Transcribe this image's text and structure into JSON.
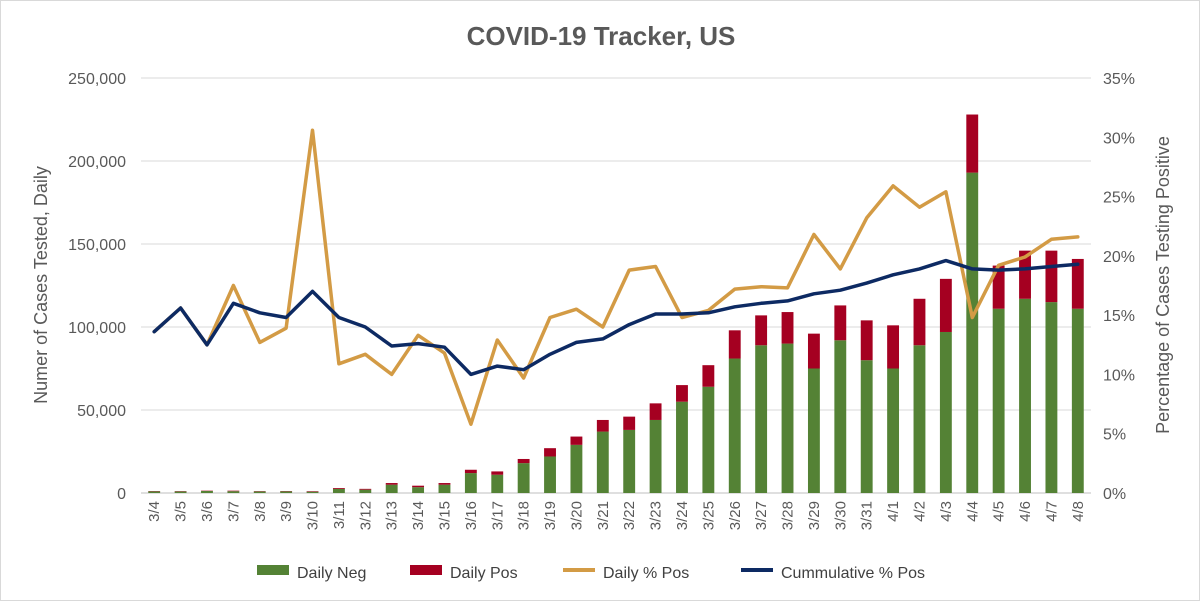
{
  "chart_data": {
    "type": "bar",
    "title": "COVID-19 Tracker, US",
    "ylabel": "Numer of Cases Tested, Daily",
    "y2label": "Percentage of Cases Testing Positive",
    "xlabel": "",
    "ylim": [
      0,
      250000
    ],
    "y2lim": [
      0,
      35
    ],
    "yticks": [
      "0",
      "50,000",
      "100,000",
      "150,000",
      "200,000",
      "250,000"
    ],
    "y2ticks": [
      "0%",
      "5%",
      "10%",
      "15%",
      "20%",
      "25%",
      "30%",
      "35%"
    ],
    "categories": [
      "3/4",
      "3/5",
      "3/6",
      "3/7",
      "3/8",
      "3/9",
      "3/10",
      "3/11",
      "3/12",
      "3/13",
      "3/14",
      "3/15",
      "3/16",
      "3/17",
      "3/18",
      "3/19",
      "3/20",
      "3/21",
      "3/22",
      "3/23",
      "3/24",
      "3/25",
      "3/26",
      "3/27",
      "3/28",
      "3/29",
      "3/30",
      "3/31",
      "4/1",
      "4/2",
      "4/3",
      "4/4",
      "4/5",
      "4/6",
      "4/7",
      "4/8"
    ],
    "series": [
      {
        "name": "Daily Neg",
        "kind": "bar",
        "axis": "left",
        "color": "#548235",
        "values": [
          1000,
          900,
          1200,
          1100,
          900,
          1000,
          800,
          2500,
          2000,
          5000,
          3500,
          5000,
          12000,
          11000,
          18000,
          22000,
          29000,
          37000,
          38000,
          44000,
          55000,
          64000,
          81000,
          89000,
          90000,
          75000,
          92000,
          80000,
          75000,
          89000,
          97000,
          193000,
          111000,
          117000,
          115000,
          111000
        ]
      },
      {
        "name": "Daily Pos",
        "kind": "bar",
        "axis": "left",
        "color": "#a50021",
        "values": [
          200,
          200,
          200,
          300,
          200,
          200,
          300,
          500,
          500,
          1000,
          900,
          1000,
          2000,
          2000,
          2500,
          5000,
          5000,
          7000,
          8000,
          10000,
          10000,
          13000,
          17000,
          18000,
          19000,
          21000,
          21000,
          24000,
          26000,
          28000,
          32000,
          35000,
          26000,
          29000,
          31000,
          30000
        ]
      },
      {
        "name": "Daily % Pos",
        "kind": "line",
        "axis": "right",
        "color": "#d39b45",
        "values": [
          13.6,
          15.6,
          12.5,
          17.5,
          12.7,
          13.9,
          30.6,
          10.9,
          11.7,
          10.0,
          13.3,
          11.8,
          5.8,
          12.9,
          9.7,
          14.8,
          15.5,
          14.0,
          18.8,
          19.1,
          14.8,
          15.4,
          17.2,
          17.4,
          17.3,
          21.8,
          18.9,
          23.2,
          25.9,
          24.1,
          25.4,
          14.8,
          19.2,
          19.9,
          21.4,
          21.6
        ]
      },
      {
        "name": "Cummulative % Pos",
        "kind": "line",
        "axis": "right",
        "color": "#0d2a63",
        "values": [
          13.6,
          15.6,
          12.5,
          16.0,
          15.2,
          14.8,
          17.0,
          14.8,
          14.0,
          12.4,
          12.6,
          12.3,
          10.0,
          10.7,
          10.4,
          11.7,
          12.7,
          13.0,
          14.2,
          15.1,
          15.1,
          15.2,
          15.7,
          16.0,
          16.2,
          16.8,
          17.1,
          17.7,
          18.4,
          18.9,
          19.6,
          18.9,
          18.8,
          18.9,
          19.1,
          19.3
        ]
      }
    ],
    "legend_position": "bottom",
    "grid": true
  }
}
